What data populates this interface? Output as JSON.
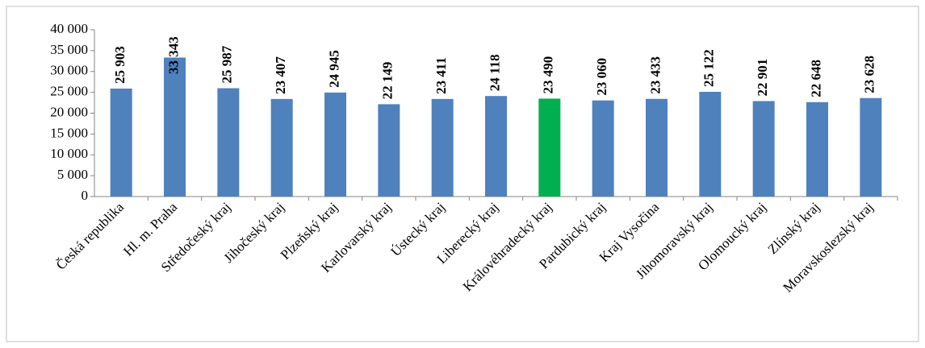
{
  "chart_data": {
    "type": "bar",
    "categories": [
      "Česká republika",
      "Hl. m. Praha",
      "Středočeský kraj",
      "Jihočeský kraj",
      "Plzeňský kraj",
      "Karlovarský kraj",
      "Ústecký kraj",
      "Liberecký kraj",
      "Královéhradecký kraj",
      "Pardubický kraj",
      "Kraj Vysočina",
      "Jihomoravský kraj",
      "Olomoucký kraj",
      "Zlínský kraj",
      "Moravskoslezský kraj"
    ],
    "values": [
      25903,
      33343,
      25987,
      23407,
      24945,
      22149,
      23411,
      24118,
      23490,
      23060,
      23433,
      25122,
      22901,
      22648,
      23628
    ],
    "value_labels": [
      "25 903",
      "33 343",
      "25 987",
      "23 407",
      "24 945",
      "22 149",
      "23 411",
      "24 118",
      "23 490",
      "23 060",
      "23 433",
      "25 122",
      "22 901",
      "22 648",
      "23 628"
    ],
    "colors": [
      "#4f81bd",
      "#4f81bd",
      "#4f81bd",
      "#4f81bd",
      "#4f81bd",
      "#4f81bd",
      "#4f81bd",
      "#4f81bd",
      "#00b050",
      "#4f81bd",
      "#4f81bd",
      "#4f81bd",
      "#4f81bd",
      "#4f81bd",
      "#4f81bd"
    ],
    "ylim": [
      0,
      40000
    ],
    "yticks": [
      0,
      {
        "value": 5000,
        "label": "5 000"
      },
      {
        "value": 10000,
        "label": "10 000"
      },
      {
        "value": 15000,
        "label": "15 000"
      },
      {
        "value": 20000,
        "label": "20 000"
      },
      {
        "value": 25000,
        "label": "25 000"
      },
      {
        "value": 30000,
        "label": "30 000"
      },
      {
        "value": 35000,
        "label": "35 000"
      },
      {
        "value": 40000,
        "label": "40 000"
      }
    ],
    "grid": false
  }
}
